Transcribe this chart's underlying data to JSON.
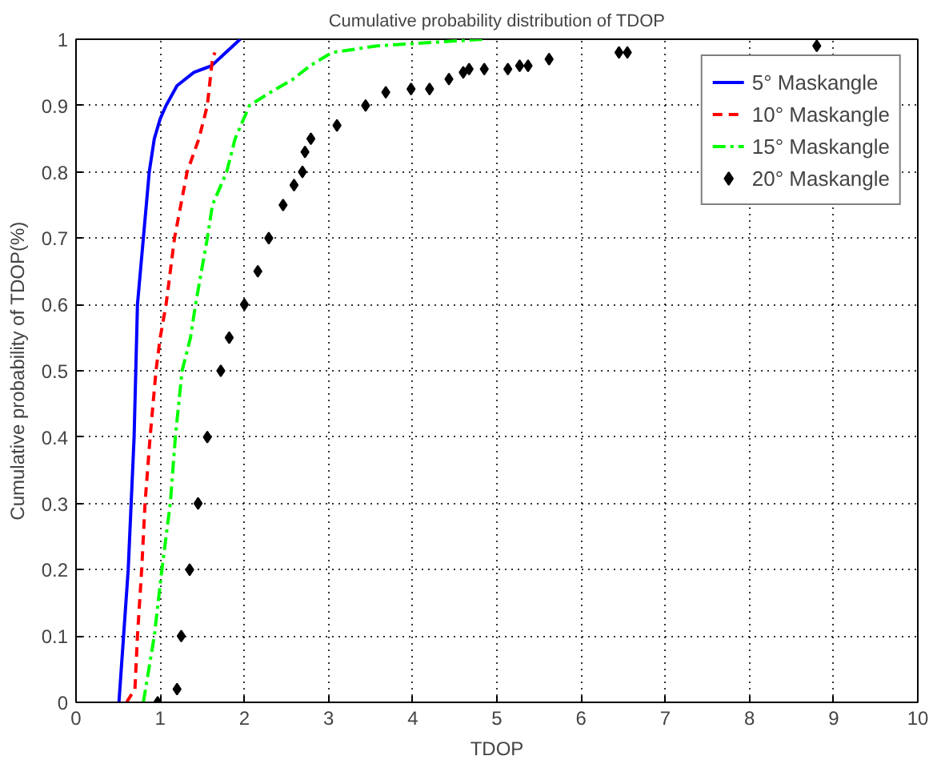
{
  "chart_data": {
    "type": "line",
    "title": "Cumulative probability distribution of TDOP",
    "xlabel": "TDOP",
    "ylabel": "Cumulative probability of TDOP(%)",
    "xlim": [
      0,
      10
    ],
    "ylim": [
      0,
      1
    ],
    "xticks": [
      0,
      1,
      2,
      3,
      4,
      5,
      6,
      7,
      8,
      9,
      10
    ],
    "yticks": [
      0,
      0.1,
      0.2,
      0.3,
      0.4,
      0.5,
      0.6,
      0.7,
      0.8,
      0.9,
      1
    ],
    "grid": true,
    "legend": "top right",
    "series": [
      {
        "name": "5° Maskangle",
        "color": "#0000ff",
        "line_style": "solid",
        "x": [
          0.51,
          0.62,
          0.69,
          0.73,
          0.8,
          0.87,
          0.93,
          1.0,
          1.07,
          1.2,
          1.4,
          1.61,
          1.78,
          1.95
        ],
        "values": [
          0,
          0.2,
          0.4,
          0.6,
          0.7,
          0.8,
          0.85,
          0.88,
          0.9,
          0.93,
          0.95,
          0.96,
          0.98,
          1.0
        ]
      },
      {
        "name": "10° Maskangle",
        "color": "#ff0000",
        "line_style": "dashed",
        "x": [
          0.6,
          0.7,
          0.73,
          0.78,
          0.82,
          0.88,
          0.95,
          1.0,
          1.07,
          1.17,
          1.32,
          1.46,
          1.56,
          1.62,
          1.65
        ],
        "values": [
          0,
          0.02,
          0.1,
          0.2,
          0.3,
          0.4,
          0.5,
          0.55,
          0.6,
          0.7,
          0.8,
          0.85,
          0.9,
          0.97,
          0.98
        ]
      },
      {
        "name": "15° Maskangle",
        "color": "#00ff00",
        "line_style": "dashdot",
        "x": [
          0.8,
          0.93,
          1.02,
          1.12,
          1.18,
          1.26,
          1.36,
          1.42,
          1.56,
          1.62,
          1.79,
          1.89,
          2.06,
          2.31,
          2.58,
          2.78,
          3.04,
          3.58,
          4.83
        ],
        "values": [
          0,
          0.1,
          0.2,
          0.3,
          0.4,
          0.5,
          0.55,
          0.6,
          0.7,
          0.75,
          0.8,
          0.85,
          0.9,
          0.92,
          0.94,
          0.96,
          0.98,
          0.99,
          1.0
        ]
      },
      {
        "name": "20° Maskangle",
        "color": "#000000",
        "type": "scatter",
        "marker": "diamond",
        "x": [
          0.97,
          1.2,
          1.25,
          1.35,
          1.45,
          1.56,
          1.72,
          1.82,
          2.0,
          2.16,
          2.29,
          2.46,
          2.59,
          2.69,
          2.72,
          2.79,
          3.1,
          3.44,
          3.68,
          3.98,
          4.2,
          4.43,
          4.6,
          4.67,
          4.85,
          5.13,
          5.27,
          5.37,
          5.62,
          6.45,
          6.55,
          8.8
        ],
        "values": [
          0,
          0.02,
          0.1,
          0.2,
          0.3,
          0.4,
          0.5,
          0.55,
          0.6,
          0.65,
          0.7,
          0.75,
          0.78,
          0.8,
          0.83,
          0.85,
          0.87,
          0.9,
          0.92,
          0.925,
          0.925,
          0.94,
          0.95,
          0.955,
          0.955,
          0.955,
          0.96,
          0.96,
          0.97,
          0.98,
          0.98,
          0.99
        ]
      }
    ]
  }
}
